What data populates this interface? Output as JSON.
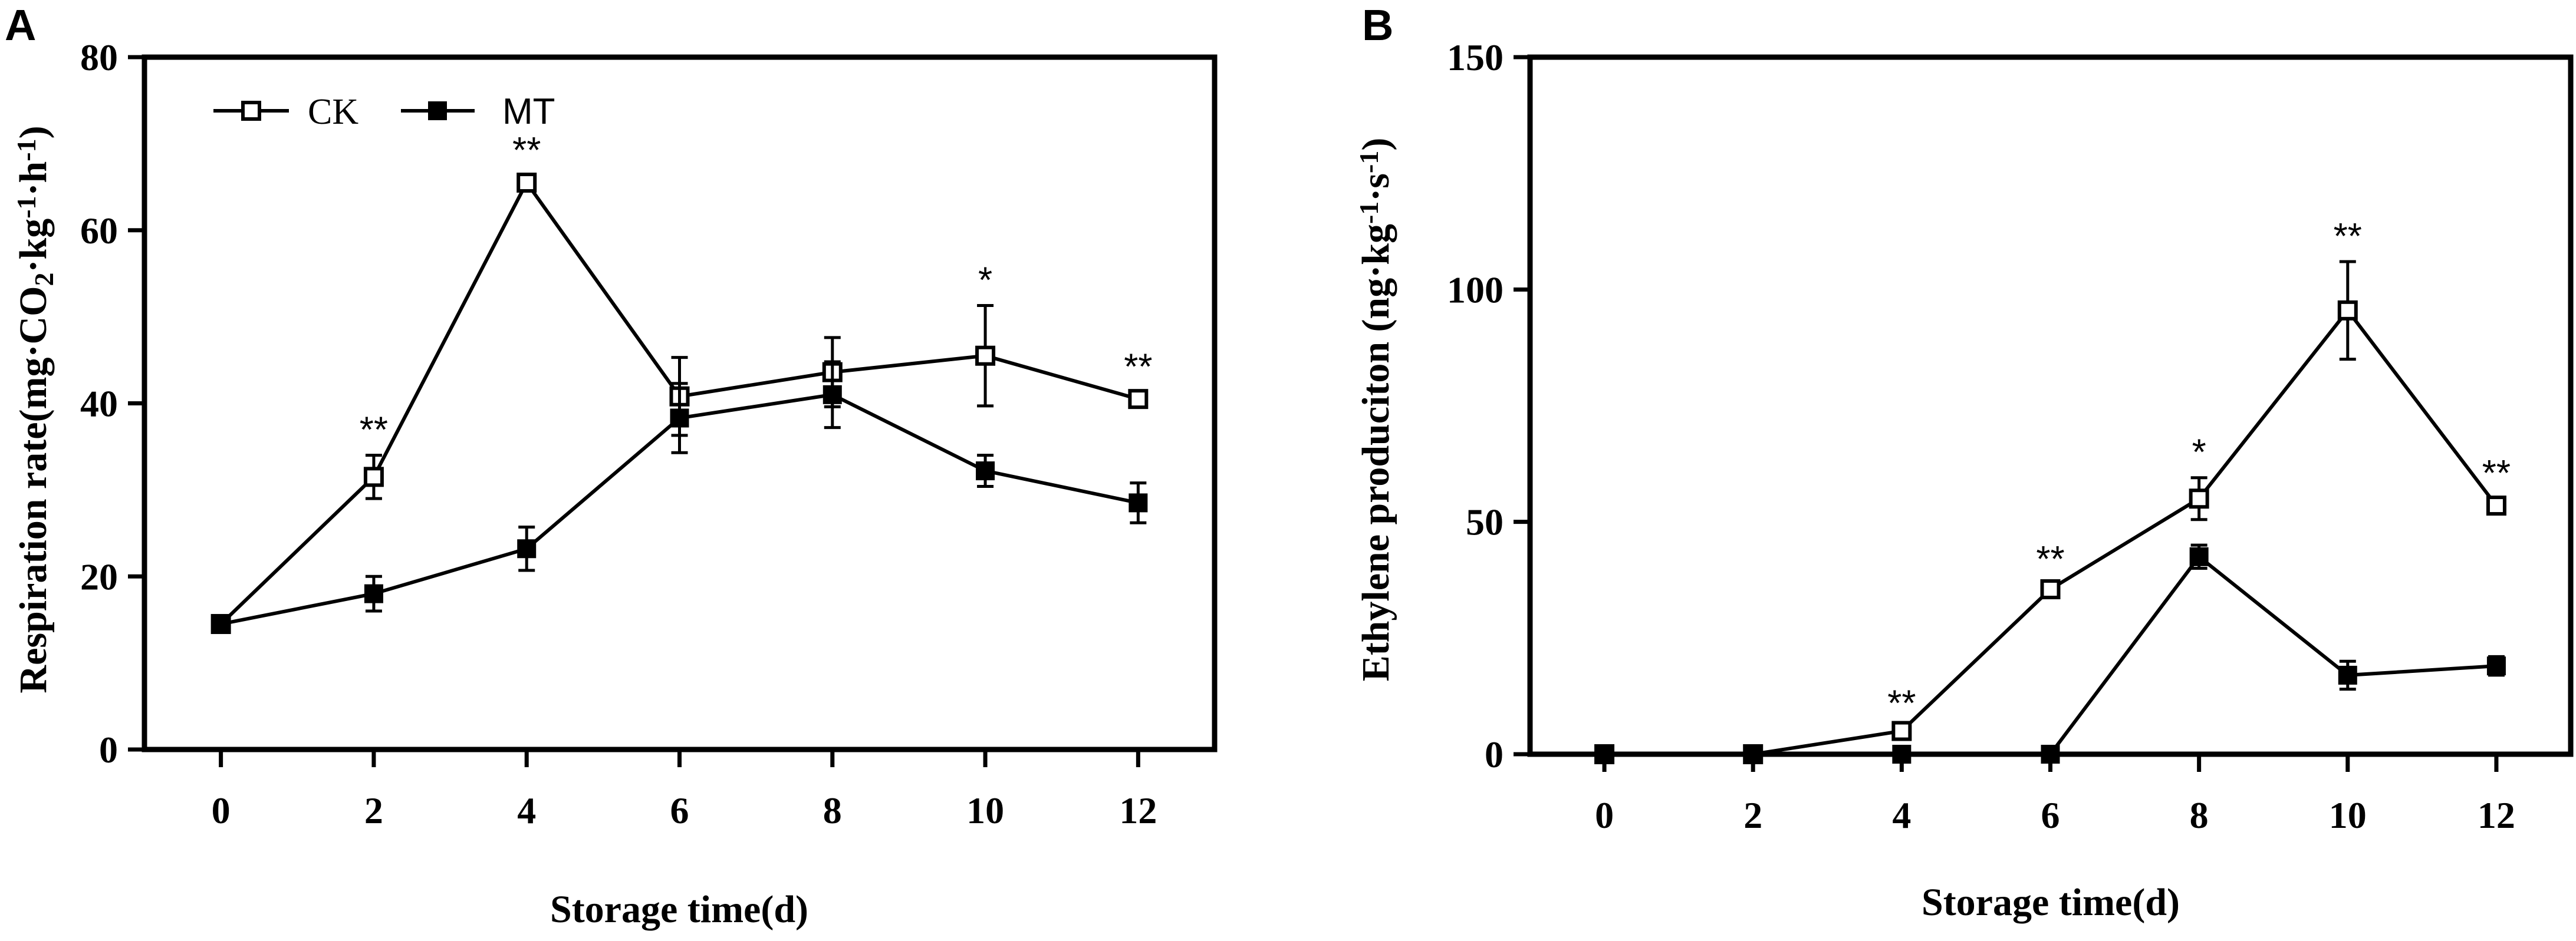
{
  "chart_data": [
    {
      "type": "line",
      "panel_label": "A",
      "xlabel": "Storage time(d)",
      "ylabel_text": "Respiration rate(mg·CO",
      "ylabel_sub": "2",
      "ylabel_tail1": "·kg",
      "ylabel_sup1": "-1",
      "ylabel_tail2": "·h",
      "ylabel_sup2": "-1",
      "ylabel_close": ")",
      "x": [
        0,
        2,
        4,
        6,
        8,
        10,
        12
      ],
      "xticks": [
        "0",
        "2",
        "4",
        "6",
        "8",
        "10",
        "12"
      ],
      "xlim": [
        -1,
        13
      ],
      "ylim": [
        0,
        80
      ],
      "yticks": [
        "0",
        "20",
        "40",
        "60",
        "80"
      ],
      "ytick_values": [
        0,
        20,
        40,
        60,
        80
      ],
      "legend": {
        "placement": "top-left",
        "entries": [
          "CK",
          "MT"
        ]
      },
      "series": [
        {
          "name": "CK",
          "marker": "open-square",
          "values": [
            14.5,
            31.5,
            65.5,
            40.8,
            43.6,
            45.5,
            40.5
          ],
          "errors": [
            0.5,
            2.5,
            0.8,
            4.5,
            4.0,
            5.8,
            0.8
          ]
        },
        {
          "name": "MT",
          "marker": "filled-square",
          "values": [
            14.5,
            18.0,
            23.2,
            38.3,
            41.0,
            32.2,
            28.5
          ],
          "errors": [
            0.5,
            2.0,
            2.5,
            4.0,
            3.8,
            1.8,
            2.3
          ]
        }
      ],
      "annotations": [
        {
          "x": 2,
          "y": 34.0,
          "text": "**"
        },
        {
          "x": 4,
          "y": 66.3,
          "text": "**"
        },
        {
          "x": 10,
          "y": 51.3,
          "text": "*"
        },
        {
          "x": 12,
          "y": 41.3,
          "text": "**"
        }
      ]
    },
    {
      "type": "line",
      "panel_label": "B",
      "xlabel": "Storage time(d)",
      "ylabel_text": "Ethylene produciton (ng·kg",
      "ylabel_sup1": "-1",
      "ylabel_tail2": "·s",
      "ylabel_sup2": "-1",
      "ylabel_close": ")",
      "x": [
        0,
        2,
        4,
        6,
        8,
        10,
        12
      ],
      "xticks": [
        "0",
        "2",
        "4",
        "6",
        "8",
        "10",
        "12"
      ],
      "xlim": [
        -1,
        13
      ],
      "ylim": [
        0,
        150
      ],
      "yticks": [
        "0",
        "50",
        "100",
        "150"
      ],
      "ytick_values": [
        0,
        50,
        100,
        150
      ],
      "series": [
        {
          "name": "CK",
          "marker": "open-square",
          "values": [
            0,
            0,
            5.0,
            35.5,
            55.0,
            95.5,
            53.5
          ],
          "errors": [
            0,
            0,
            0.5,
            1.0,
            4.5,
            10.5,
            1.5
          ]
        },
        {
          "name": "MT",
          "marker": "filled-square",
          "values": [
            0,
            0,
            0,
            0,
            42.5,
            17.0,
            19.0
          ],
          "errors": [
            0,
            0,
            0,
            0,
            2.5,
            3.0,
            2.0
          ]
        }
      ],
      "annotations": [
        {
          "x": 4,
          "y": 5.5,
          "text": "**"
        },
        {
          "x": 6,
          "y": 36.5,
          "text": "**"
        },
        {
          "x": 8,
          "y": 59.5,
          "text": "*"
        },
        {
          "x": 10,
          "y": 106.0,
          "text": "**"
        },
        {
          "x": 12,
          "y": 55.0,
          "text": "**"
        }
      ]
    }
  ]
}
